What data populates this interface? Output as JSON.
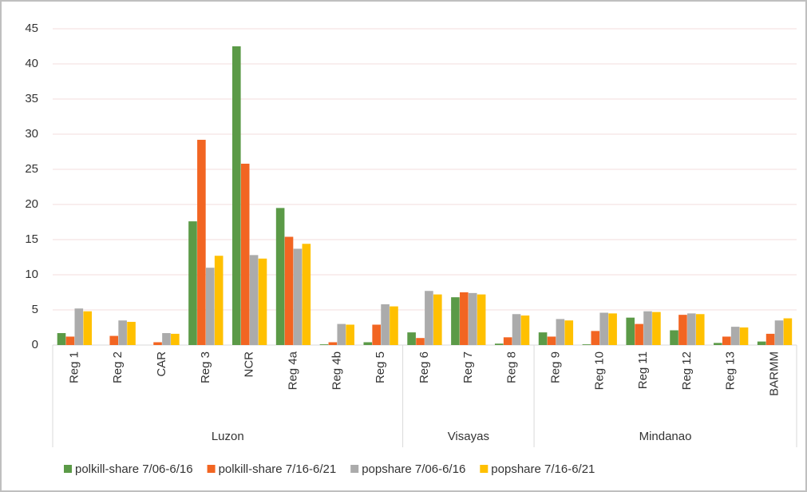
{
  "chart_data": {
    "type": "bar",
    "category_groups": [
      {
        "name": "Luzon",
        "categories": [
          "Reg 1",
          "Reg 2",
          "CAR",
          "Reg 3",
          "NCR",
          "Reg 4a",
          "Reg 4b",
          "Reg 5"
        ]
      },
      {
        "name": "Visayas",
        "categories": [
          "Reg 6",
          "Reg 7",
          "Reg 8"
        ]
      },
      {
        "name": "Mindanao",
        "categories": [
          "Reg 9",
          "Reg 10",
          "Reg 11",
          "Reg 12",
          "Reg 13",
          "BARMM"
        ]
      }
    ],
    "series": [
      {
        "name": "polkill-share 7/06-6/16",
        "color": "#5b9a47",
        "values": [
          1.7,
          0,
          0,
          17.6,
          42.5,
          19.5,
          0.1,
          0.4,
          1.8,
          6.8,
          0.2,
          1.8,
          0.1,
          3.9,
          2.1,
          0.3,
          0.5
        ]
      },
      {
        "name": "polkill-share 7/16-6/21",
        "color": "#f26522",
        "values": [
          1.2,
          1.3,
          0.4,
          29.2,
          25.8,
          15.4,
          0.4,
          2.9,
          1.0,
          7.5,
          1.1,
          1.2,
          2.0,
          3.0,
          4.3,
          1.2,
          1.6
        ]
      },
      {
        "name": "popshare 7/06-6/16",
        "color": "#ababab",
        "values": [
          5.2,
          3.5,
          1.7,
          11.0,
          12.8,
          13.7,
          3.0,
          5.8,
          7.7,
          7.4,
          4.4,
          3.7,
          4.6,
          4.8,
          4.5,
          2.6,
          3.5
        ]
      },
      {
        "name": "popshare 7/16-6/21",
        "color": "#ffc000",
        "values": [
          4.8,
          3.3,
          1.6,
          12.7,
          12.3,
          14.4,
          2.9,
          5.5,
          7.2,
          7.2,
          4.2,
          3.5,
          4.5,
          4.7,
          4.4,
          2.5,
          3.8
        ]
      }
    ],
    "ylim": [
      0,
      45
    ],
    "yticks": [
      0,
      5,
      10,
      15,
      20,
      25,
      30,
      35,
      40,
      45
    ],
    "grid": true,
    "legend": "bottom"
  }
}
